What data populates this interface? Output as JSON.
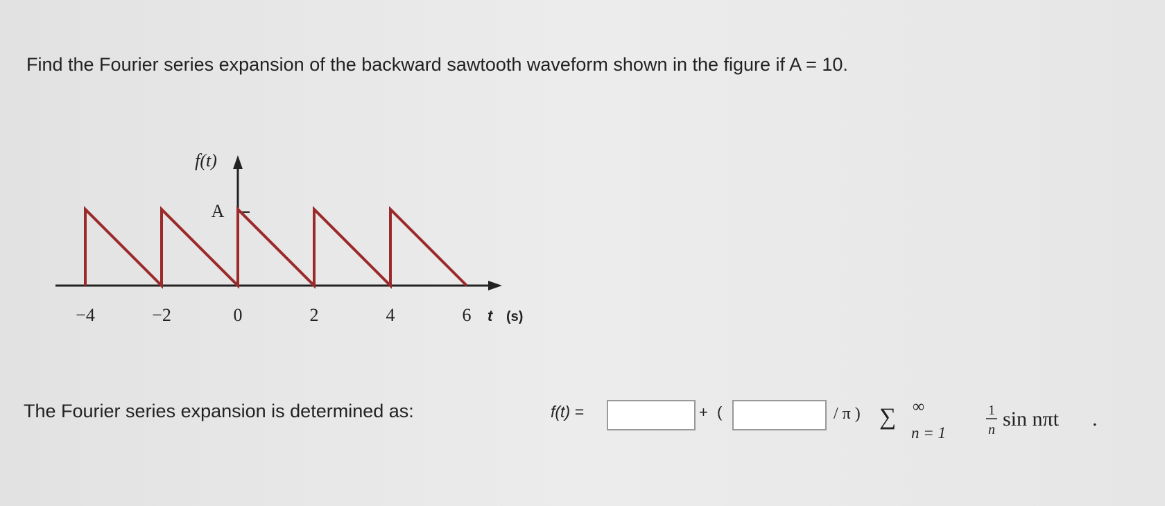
{
  "question": "Find the Fourier series expansion of the backward sawtooth waveform shown in the figure if A = 10.",
  "figure": {
    "y_label": "f(t)",
    "amplitude_label": "A",
    "x_ticks": [
      "−4",
      "−2",
      "0",
      "2",
      "4",
      "6"
    ],
    "x_label": "t",
    "x_unit": "(s)"
  },
  "answer": {
    "lead": "The Fourier series expansion is determined as:",
    "lhs": "f(t) =",
    "plus": "+",
    "open_paren": "(",
    "over_pi": "/ π )",
    "sum": "∑",
    "upper": "∞",
    "lower": "n = 1",
    "frac_num": "1",
    "frac_den": "n",
    "term": "sin nπt",
    "end": "."
  }
}
